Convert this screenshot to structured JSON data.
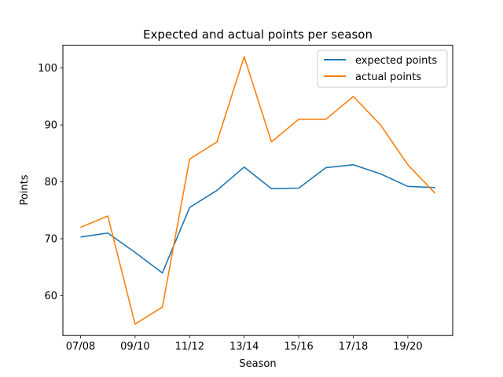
{
  "chart_data": {
    "type": "line",
    "title": "Expected and actual points per season",
    "xlabel": "Season",
    "ylabel": "Points",
    "ylim": [
      53,
      104
    ],
    "x_tick_labels": [
      "07/08",
      "09/10",
      "11/12",
      "13/14",
      "15/16",
      "17/18",
      "19/20"
    ],
    "y_tick_labels": [
      "60",
      "70",
      "80",
      "90",
      "100"
    ],
    "x": [
      "07/08",
      "08/09",
      "09/10",
      "10/11",
      "11/12",
      "12/13",
      "13/14",
      "14/15",
      "15/16",
      "16/17",
      "17/18",
      "18/19",
      "19/20",
      "20/21"
    ],
    "series": [
      {
        "name": "expected points",
        "color": "#1f77b4",
        "values": [
          70.3,
          71.0,
          67.6,
          64.0,
          75.5,
          78.5,
          82.6,
          78.8,
          78.9,
          82.5,
          83.0,
          81.4,
          79.2,
          79.0
        ]
      },
      {
        "name": "actual points",
        "color": "#ff7f0e",
        "values": [
          72,
          74,
          55,
          58,
          84,
          87,
          102,
          87,
          91,
          91,
          95,
          90,
          83,
          78
        ]
      }
    ],
    "legend_position": "top-right",
    "grid": false
  }
}
